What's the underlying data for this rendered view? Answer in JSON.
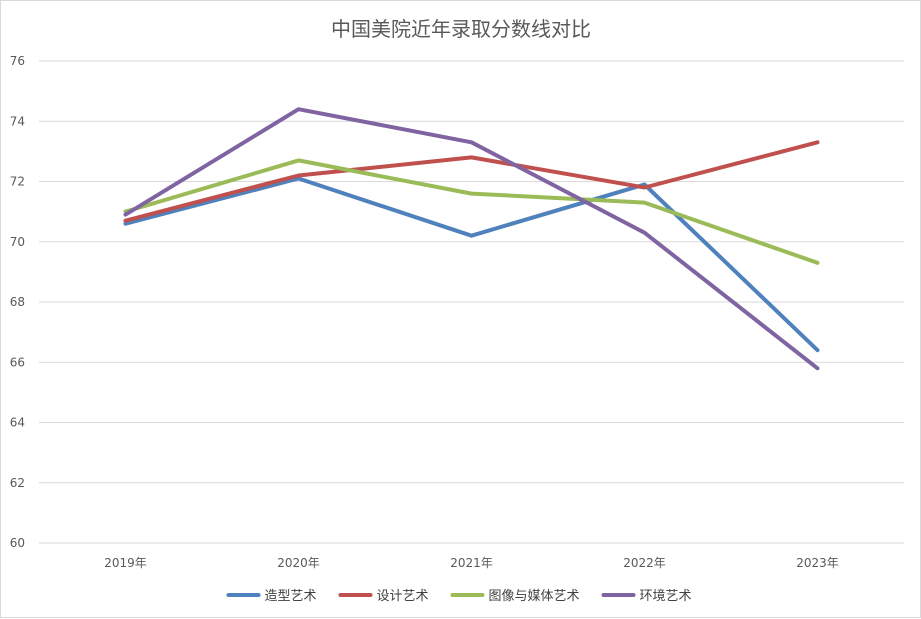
{
  "chart_data": {
    "type": "line",
    "title": "中国美院近年录取分数线对比",
    "xlabel": "",
    "ylabel": "",
    "categories": [
      "2019年",
      "2020年",
      "2021年",
      "2022年",
      "2023年"
    ],
    "ylim": [
      60,
      76
    ],
    "yticks": [
      60,
      62,
      64,
      66,
      68,
      70,
      72,
      74,
      76
    ],
    "grid": true,
    "legend_position": "bottom",
    "series": [
      {
        "name": "造型艺术",
        "color": "#4f81bd",
        "values": [
          70.6,
          72.1,
          70.2,
          71.9,
          66.4
        ]
      },
      {
        "name": "设计艺术",
        "color": "#c0504d",
        "values": [
          70.7,
          72.2,
          72.8,
          71.8,
          73.3
        ]
      },
      {
        "name": "图像与媒体艺术",
        "color": "#9bbb59",
        "values": [
          71.0,
          72.7,
          71.6,
          71.3,
          69.3
        ]
      },
      {
        "name": "环境艺术",
        "color": "#8064a2",
        "values": [
          70.9,
          74.4,
          73.3,
          70.3,
          65.8
        ]
      }
    ]
  }
}
